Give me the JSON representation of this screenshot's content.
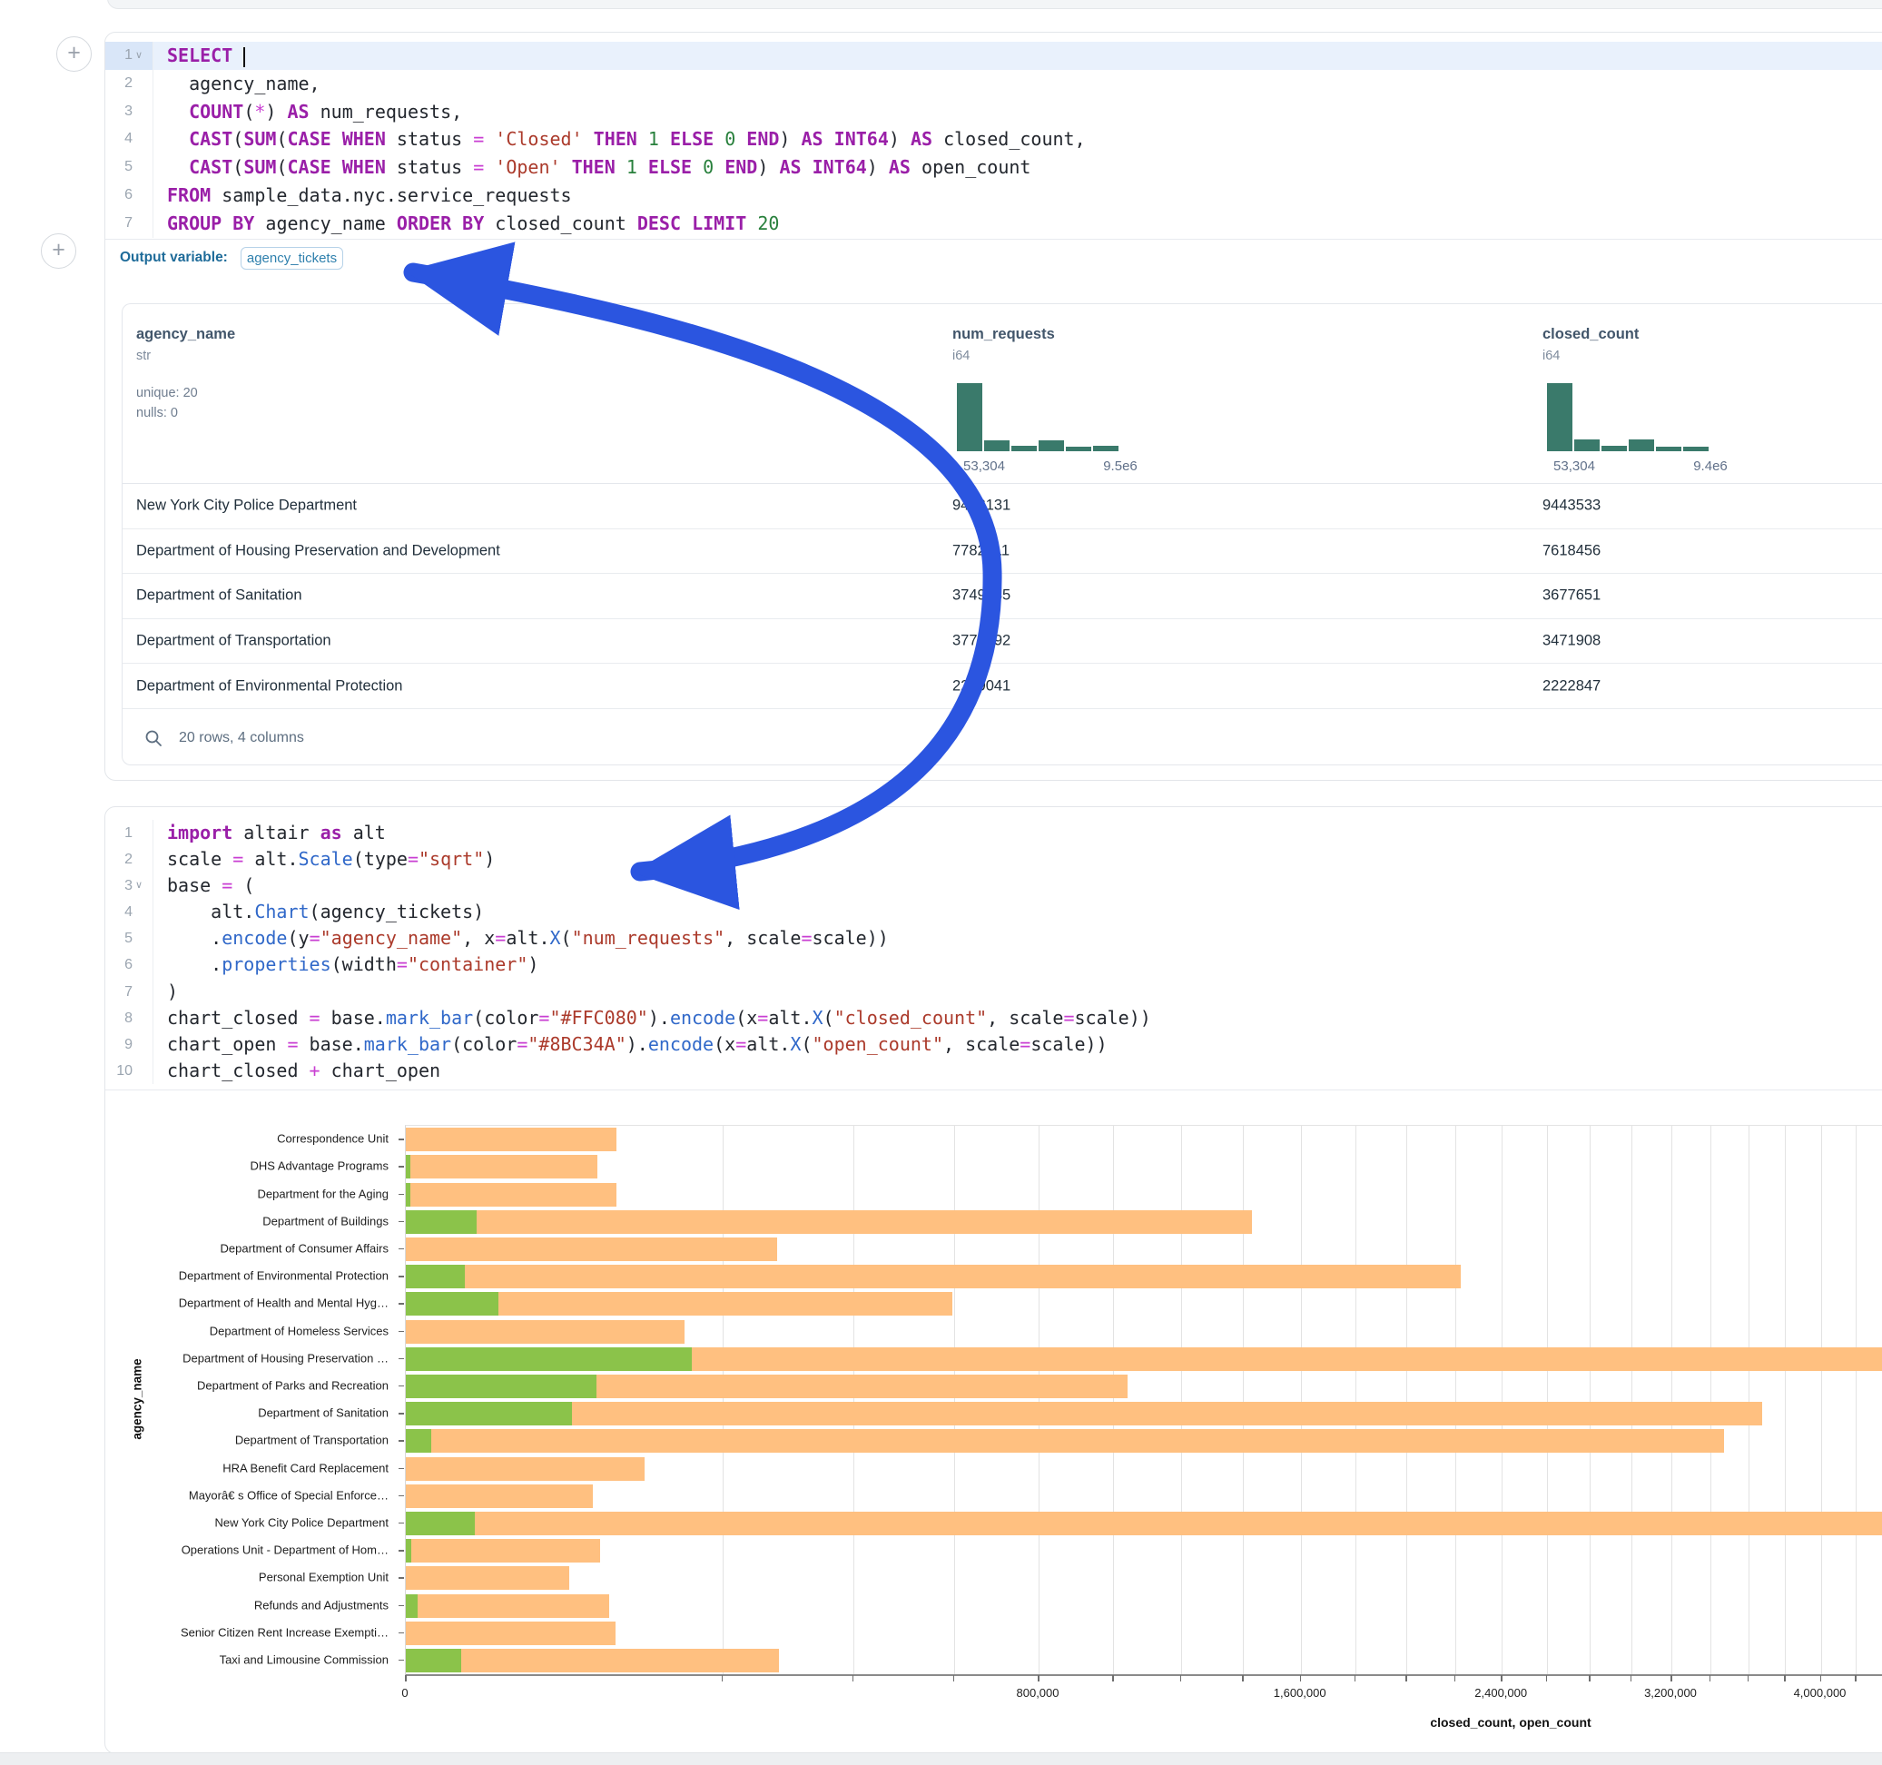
{
  "ui": {
    "add_cell_label": "+",
    "arrow_color": "#2b55e0"
  },
  "sql_cell": {
    "output_variable_label": "Output variable:",
    "output_variable_value": "agency_tickets",
    "lines": [
      {
        "n": "1",
        "chevron": true,
        "active": true,
        "tokens": [
          [
            "kw",
            "SELECT"
          ],
          [
            "pl",
            " "
          ],
          [
            "cur",
            ""
          ]
        ]
      },
      {
        "n": "2",
        "tokens": [
          [
            "pl",
            "  agency_name,"
          ]
        ]
      },
      {
        "n": "3",
        "tokens": [
          [
            "pl",
            "  "
          ],
          [
            "kw",
            "COUNT"
          ],
          [
            "pl",
            "("
          ],
          [
            "op",
            "*"
          ],
          [
            "pl",
            ") "
          ],
          [
            "kw",
            "AS"
          ],
          [
            "pl",
            " num_requests,"
          ]
        ]
      },
      {
        "n": "4",
        "tokens": [
          [
            "pl",
            "  "
          ],
          [
            "kw",
            "CAST"
          ],
          [
            "pl",
            "("
          ],
          [
            "kw",
            "SUM"
          ],
          [
            "pl",
            "("
          ],
          [
            "kw",
            "CASE"
          ],
          [
            "pl",
            " "
          ],
          [
            "kw",
            "WHEN"
          ],
          [
            "pl",
            " status "
          ],
          [
            "op",
            "="
          ],
          [
            "pl",
            " "
          ],
          [
            "str",
            "'Closed'"
          ],
          [
            "pl",
            " "
          ],
          [
            "kw",
            "THEN"
          ],
          [
            "pl",
            " "
          ],
          [
            "num",
            "1"
          ],
          [
            "pl",
            " "
          ],
          [
            "kw",
            "ELSE"
          ],
          [
            "pl",
            " "
          ],
          [
            "num",
            "0"
          ],
          [
            "pl",
            " "
          ],
          [
            "kw",
            "END"
          ],
          [
            "pl",
            ") "
          ],
          [
            "kw",
            "AS"
          ],
          [
            "pl",
            " "
          ],
          [
            "kw",
            "INT64"
          ],
          [
            "pl",
            ") "
          ],
          [
            "kw",
            "AS"
          ],
          [
            "pl",
            " closed_count,"
          ]
        ]
      },
      {
        "n": "5",
        "tokens": [
          [
            "pl",
            "  "
          ],
          [
            "kw",
            "CAST"
          ],
          [
            "pl",
            "("
          ],
          [
            "kw",
            "SUM"
          ],
          [
            "pl",
            "("
          ],
          [
            "kw",
            "CASE"
          ],
          [
            "pl",
            " "
          ],
          [
            "kw",
            "WHEN"
          ],
          [
            "pl",
            " status "
          ],
          [
            "op",
            "="
          ],
          [
            "pl",
            " "
          ],
          [
            "str",
            "'Open'"
          ],
          [
            "pl",
            " "
          ],
          [
            "kw",
            "THEN"
          ],
          [
            "pl",
            " "
          ],
          [
            "num",
            "1"
          ],
          [
            "pl",
            " "
          ],
          [
            "kw",
            "ELSE"
          ],
          [
            "pl",
            " "
          ],
          [
            "num",
            "0"
          ],
          [
            "pl",
            " "
          ],
          [
            "kw",
            "END"
          ],
          [
            "pl",
            ") "
          ],
          [
            "kw",
            "AS"
          ],
          [
            "pl",
            " "
          ],
          [
            "kw",
            "INT64"
          ],
          [
            "pl",
            ") "
          ],
          [
            "kw",
            "AS"
          ],
          [
            "pl",
            " open_count"
          ]
        ]
      },
      {
        "n": "6",
        "tokens": [
          [
            "kw",
            "FROM"
          ],
          [
            "pl",
            " sample_data.nyc.service_requests"
          ]
        ]
      },
      {
        "n": "7",
        "tokens": [
          [
            "kw",
            "GROUP"
          ],
          [
            "pl",
            " "
          ],
          [
            "kw",
            "BY"
          ],
          [
            "pl",
            " agency_name "
          ],
          [
            "kw",
            "ORDER"
          ],
          [
            "pl",
            " "
          ],
          [
            "kw",
            "BY"
          ],
          [
            "pl",
            " closed_count "
          ],
          [
            "kw",
            "DESC"
          ],
          [
            "pl",
            " "
          ],
          [
            "kw",
            "LIMIT"
          ],
          [
            "pl",
            " "
          ],
          [
            "num",
            "20"
          ]
        ]
      }
    ]
  },
  "table": {
    "columns": [
      {
        "name": "agency_name",
        "type": "str",
        "stats": [
          "unique: 20",
          "nulls: 0"
        ]
      },
      {
        "name": "num_requests",
        "type": "i64",
        "hist": [
          1,
          0.165,
          0.076,
          0.156,
          0.067,
          0.076
        ],
        "hist_min": "53,304",
        "hist_max": "9.5e6"
      },
      {
        "name": "closed_count",
        "type": "i64",
        "hist": [
          1,
          0.178,
          0.08,
          0.169,
          0.071,
          0.071
        ],
        "hist_min": "53,304",
        "hist_max": "9.4e6"
      }
    ],
    "rows": [
      [
        "New York City Police Department",
        "9453131",
        "9443533"
      ],
      [
        "Department of Housing Preservation and Development",
        "7782211",
        "7618456"
      ],
      [
        "Department of Sanitation",
        "3749485",
        "3677651"
      ],
      [
        "Department of Transportation",
        "3774892",
        "3471908"
      ],
      [
        "Department of Environmental Protection",
        "2240041",
        "2222847"
      ]
    ],
    "footer": "20 rows, 4 columns"
  },
  "python_cell": {
    "lines": [
      {
        "n": "1",
        "tokens": [
          [
            "kw",
            "import"
          ],
          [
            "pl",
            " altair "
          ],
          [
            "kw",
            "as"
          ],
          [
            "pl",
            " alt"
          ]
        ]
      },
      {
        "n": "2",
        "tokens": [
          [
            "pl",
            "scale "
          ],
          [
            "op",
            "="
          ],
          [
            "pl",
            " alt."
          ],
          [
            "fn",
            "Scale"
          ],
          [
            "pl",
            "(type"
          ],
          [
            "op",
            "="
          ],
          [
            "str",
            "\"sqrt\""
          ],
          [
            "pl",
            ")"
          ]
        ]
      },
      {
        "n": "3",
        "chevron": true,
        "tokens": [
          [
            "pl",
            "base "
          ],
          [
            "op",
            "="
          ],
          [
            "pl",
            " ("
          ]
        ]
      },
      {
        "n": "4",
        "tokens": [
          [
            "pl",
            "    alt."
          ],
          [
            "fn",
            "Chart"
          ],
          [
            "pl",
            "(agency_tickets)"
          ]
        ]
      },
      {
        "n": "5",
        "tokens": [
          [
            "pl",
            "    ."
          ],
          [
            "fn",
            "encode"
          ],
          [
            "pl",
            "(y"
          ],
          [
            "op",
            "="
          ],
          [
            "str",
            "\"agency_name\""
          ],
          [
            "pl",
            ", x"
          ],
          [
            "op",
            "="
          ],
          [
            "pl",
            "alt."
          ],
          [
            "fn",
            "X"
          ],
          [
            "pl",
            "("
          ],
          [
            "str",
            "\"num_requests\""
          ],
          [
            "pl",
            ", scale"
          ],
          [
            "op",
            "="
          ],
          [
            "pl",
            "scale))"
          ]
        ]
      },
      {
        "n": "6",
        "tokens": [
          [
            "pl",
            "    ."
          ],
          [
            "fn",
            "properties"
          ],
          [
            "pl",
            "(width"
          ],
          [
            "op",
            "="
          ],
          [
            "str",
            "\"container\""
          ],
          [
            "pl",
            ")"
          ]
        ]
      },
      {
        "n": "7",
        "tokens": [
          [
            "pl",
            ")"
          ]
        ]
      },
      {
        "n": "8",
        "tokens": [
          [
            "pl",
            "chart_closed "
          ],
          [
            "op",
            "="
          ],
          [
            "pl",
            " base."
          ],
          [
            "fn",
            "mark_bar"
          ],
          [
            "pl",
            "(color"
          ],
          [
            "op",
            "="
          ],
          [
            "str",
            "\"#FFC080\""
          ],
          [
            "pl",
            ")."
          ],
          [
            "fn",
            "encode"
          ],
          [
            "pl",
            "(x"
          ],
          [
            "op",
            "="
          ],
          [
            "pl",
            "alt."
          ],
          [
            "fn",
            "X"
          ],
          [
            "pl",
            "("
          ],
          [
            "str",
            "\"closed_count\""
          ],
          [
            "pl",
            ", scale"
          ],
          [
            "op",
            "="
          ],
          [
            "pl",
            "scale))"
          ]
        ]
      },
      {
        "n": "9",
        "tokens": [
          [
            "pl",
            "chart_open "
          ],
          [
            "op",
            "="
          ],
          [
            "pl",
            " base."
          ],
          [
            "fn",
            "mark_bar"
          ],
          [
            "pl",
            "(color"
          ],
          [
            "op",
            "="
          ],
          [
            "str",
            "\"#8BC34A\""
          ],
          [
            "pl",
            ")."
          ],
          [
            "fn",
            "encode"
          ],
          [
            "pl",
            "(x"
          ],
          [
            "op",
            "="
          ],
          [
            "pl",
            "alt."
          ],
          [
            "fn",
            "X"
          ],
          [
            "pl",
            "("
          ],
          [
            "str",
            "\"open_count\""
          ],
          [
            "pl",
            ", scale"
          ],
          [
            "op",
            "="
          ],
          [
            "pl",
            "scale))"
          ]
        ]
      },
      {
        "n": "10",
        "tokens": [
          [
            "pl",
            "chart_closed "
          ],
          [
            "op",
            "+"
          ],
          [
            "pl",
            " chart_open"
          ]
        ]
      }
    ]
  },
  "chart_data": {
    "type": "bar",
    "orientation": "horizontal",
    "x_scale": "sqrt",
    "xlabel": "closed_count, open_count",
    "ylabel": "agency_name",
    "grid_step": 200000,
    "label_step": 800000,
    "x_domain_max": 9800000,
    "x_tick_labels": [
      "0",
      "800,000",
      "1,600,000",
      "2,400,000",
      "3,200,000",
      "4,000,000"
    ],
    "legend": "none",
    "categories": [
      "Correspondence Unit",
      "DHS Advantage Programs",
      "Department for the Aging",
      "Department of Buildings",
      "Department of Consumer Affairs",
      "Department of Environmental Protection",
      "Department of Health and Mental Hyg…",
      "Department of Homeless Services",
      "Department of Housing Preservation …",
      "Department of Parks and Recreation",
      "Department of Sanitation",
      "Department of Transportation",
      "HRA Benefit Card Replacement",
      "Mayorâ€ s Office of Special Enforce…",
      "New York City Police Department",
      "Operations Unit - Department of Hom…",
      "Personal Exemption Unit",
      "Refunds and Adjustments",
      "Senior Citizen Rent Increase Exempti…",
      "Taxi and Limousine Commission"
    ],
    "series": [
      {
        "name": "closed_count",
        "color": "#FFC080",
        "values": [
          89000,
          73000,
          89000,
          1430000,
          276000,
          2222847,
          597000,
          155000,
          7618456,
          1040000,
          3677651,
          3471908,
          114000,
          70000,
          9443533,
          75500,
          53304,
          82700,
          87900,
          278000
        ]
      },
      {
        "name": "open_count",
        "color": "#8BC34A",
        "values": [
          0,
          40,
          40,
          10000,
          0,
          7000,
          17100,
          0,
          163000,
          72700,
          55200,
          1300,
          0,
          0,
          9598,
          60,
          0,
          300,
          0,
          6100
        ]
      }
    ]
  },
  "annotation": {
    "type": "hand-drawn-arrow",
    "from": "alt.Chart(agency_tickets) in python cell",
    "to": "Output variable pill",
    "color": "#2b55e0"
  }
}
